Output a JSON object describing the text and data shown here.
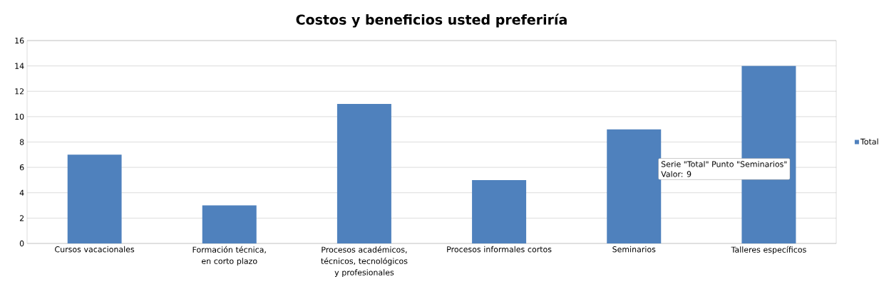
{
  "chart_data": {
    "type": "bar",
    "title": "Costos y beneficios usted preferiría",
    "categories": [
      "Cursos vacacionales",
      "Formación técnica, en corto plazo",
      "Procesos académicos, técnicos, tecnológicos y profesionales",
      "Procesos informales cortos",
      "Seminarios",
      "Talleres específicos"
    ],
    "series": [
      {
        "name": "Total",
        "color": "#4f81bd",
        "values": [
          7,
          3,
          11,
          5,
          9,
          14
        ]
      }
    ],
    "ylim": [
      0,
      16
    ],
    "yticks": [
      0,
      2,
      4,
      6,
      8,
      10,
      12,
      14,
      16
    ],
    "grid": "y",
    "legend": "right",
    "annotations": [
      "Serie \"Total\" Punto \"Seminarios\"",
      "Valor: 9"
    ]
  }
}
